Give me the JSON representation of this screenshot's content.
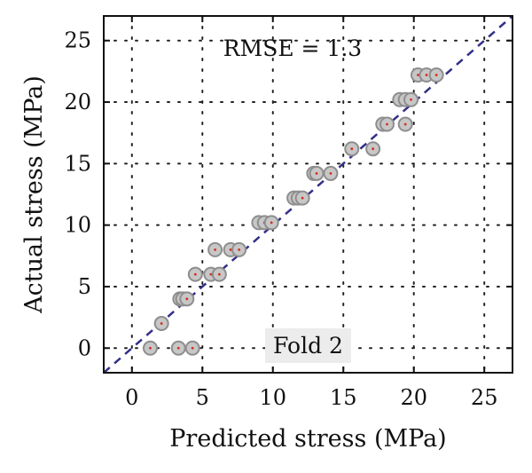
{
  "chart_data": {
    "type": "scatter",
    "xlabel": "Predicted stress (MPa)",
    "ylabel": "Actual stress (MPa)",
    "xlim": [
      -2,
      27
    ],
    "ylim": [
      -2,
      27
    ],
    "xticks": [
      0,
      5,
      10,
      15,
      20,
      25
    ],
    "yticks": [
      0,
      5,
      10,
      15,
      20,
      25
    ],
    "tick_labels_x": [
      "0",
      "5",
      "10",
      "15",
      "20",
      "25"
    ],
    "tick_labels_y": [
      "0",
      "5",
      "10",
      "15",
      "20",
      "25"
    ],
    "grid": true,
    "reference_line": "y = x",
    "annotations": {
      "rmse": "RMSE = 1.3",
      "fold": "Fold 2"
    },
    "colors": {
      "marker_fill": "#c7c7c7",
      "marker_edge": "#8e8e8e",
      "marker_center": "#d32f1f",
      "reference_line": "#332f87"
    },
    "points": [
      {
        "x": 1.3,
        "y": 0.0
      },
      {
        "x": 3.3,
        "y": 0.0
      },
      {
        "x": 4.3,
        "y": 0.0
      },
      {
        "x": 2.1,
        "y": 2.0
      },
      {
        "x": 3.4,
        "y": 4.0
      },
      {
        "x": 3.6,
        "y": 4.0
      },
      {
        "x": 3.9,
        "y": 4.0
      },
      {
        "x": 4.5,
        "y": 6.0
      },
      {
        "x": 5.6,
        "y": 6.0
      },
      {
        "x": 6.2,
        "y": 6.0
      },
      {
        "x": 5.9,
        "y": 8.0
      },
      {
        "x": 7.0,
        "y": 8.0
      },
      {
        "x": 7.6,
        "y": 8.0
      },
      {
        "x": 9.0,
        "y": 10.2
      },
      {
        "x": 9.4,
        "y": 10.2
      },
      {
        "x": 9.9,
        "y": 10.2
      },
      {
        "x": 11.5,
        "y": 12.2
      },
      {
        "x": 11.8,
        "y": 12.2
      },
      {
        "x": 12.1,
        "y": 12.2
      },
      {
        "x": 12.9,
        "y": 14.2
      },
      {
        "x": 13.1,
        "y": 14.2
      },
      {
        "x": 14.1,
        "y": 14.2
      },
      {
        "x": 15.6,
        "y": 16.2
      },
      {
        "x": 17.1,
        "y": 16.2
      },
      {
        "x": 17.8,
        "y": 18.2
      },
      {
        "x": 18.1,
        "y": 18.2
      },
      {
        "x": 19.4,
        "y": 18.2
      },
      {
        "x": 19.0,
        "y": 20.2
      },
      {
        "x": 19.4,
        "y": 20.2
      },
      {
        "x": 19.8,
        "y": 20.2
      },
      {
        "x": 20.3,
        "y": 22.2
      },
      {
        "x": 20.9,
        "y": 22.2
      },
      {
        "x": 21.6,
        "y": 22.2
      }
    ]
  }
}
